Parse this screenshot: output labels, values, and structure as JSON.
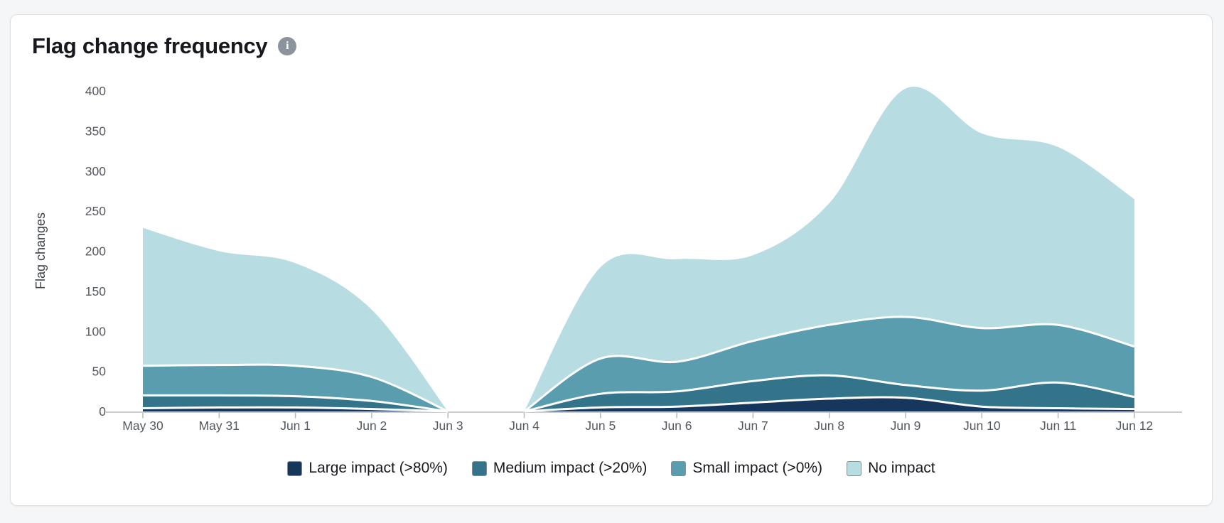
{
  "card": {
    "title": "Flag change frequency",
    "info_icon_glyph": "i"
  },
  "chart_data": {
    "type": "area",
    "stacked": true,
    "title": "Flag change frequency",
    "xlabel": "",
    "ylabel": "Flag changes",
    "ylim": [
      0,
      400
    ],
    "yticks": [
      0,
      50,
      100,
      150,
      200,
      250,
      300,
      350,
      400
    ],
    "grid": false,
    "legend_position": "bottom",
    "categories": [
      "May 30",
      "May 31",
      "Jun 1",
      "Jun 2",
      "Jun 3",
      "Jun 4",
      "Jun 5",
      "Jun 6",
      "Jun 7",
      "Jun 8",
      "Jun 9",
      "Jun 10",
      "Jun 11",
      "Jun 12"
    ],
    "series": [
      {
        "name": "Large impact (>80%)",
        "color": "#17365c",
        "values": [
          4,
          5,
          5,
          3,
          0,
          0,
          5,
          6,
          11,
          16,
          17,
          6,
          4,
          3
        ]
      },
      {
        "name": "Medium impact (>20%)",
        "color": "#34748a",
        "values": [
          16,
          15,
          14,
          10,
          0,
          0,
          17,
          19,
          27,
          29,
          16,
          20,
          32,
          15
        ]
      },
      {
        "name": "Small impact (>0%)",
        "color": "#5a9daf",
        "values": [
          37,
          38,
          38,
          30,
          0,
          0,
          44,
          37,
          50,
          63,
          85,
          78,
          72,
          63
        ]
      },
      {
        "name": "No impact",
        "color": "#b7dce2",
        "values": [
          172,
          142,
          128,
          84,
          0,
          0,
          114,
          128,
          107,
          152,
          285,
          243,
          222,
          184
        ]
      }
    ],
    "axis_color": "#c9cdd2",
    "tick_color": "#b4b8be",
    "tick_label_color": "#54585f",
    "separator_color": "#ffffff"
  }
}
